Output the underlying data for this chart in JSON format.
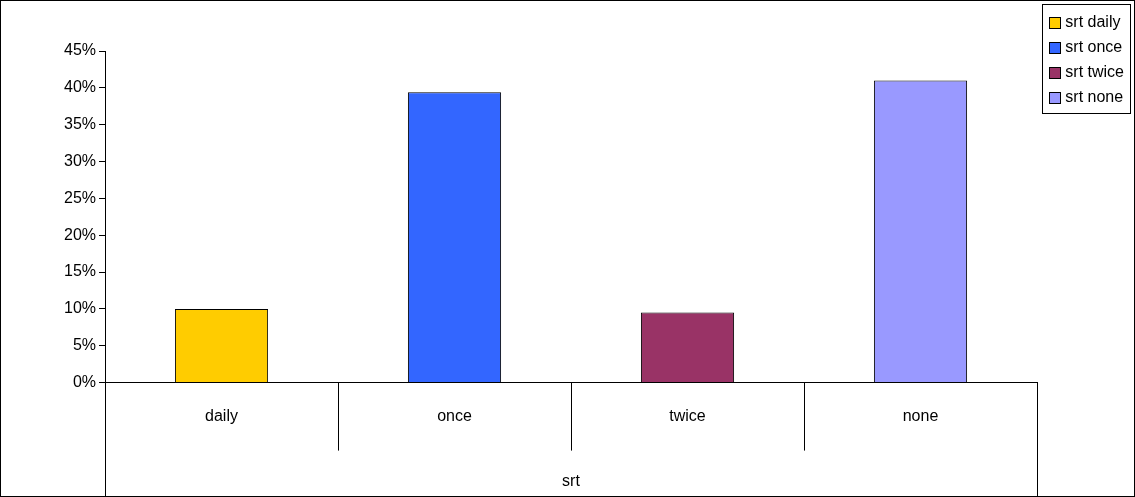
{
  "chart_data": {
    "type": "bar",
    "xlabel": "srt",
    "categories": [
      "daily",
      "once",
      "twice",
      "none"
    ],
    "series": [
      {
        "name": "srt daily",
        "color": "#ffcc00",
        "values": [
          10.0,
          null,
          null,
          null
        ]
      },
      {
        "name": "srt once",
        "color": "#3366ff",
        "values": [
          null,
          39.4,
          null,
          null
        ]
      },
      {
        "name": "srt twice",
        "color": "#993366",
        "values": [
          null,
          null,
          9.5,
          null
        ]
      },
      {
        "name": "srt none",
        "color": "#9999ff",
        "values": [
          null,
          null,
          null,
          41.0
        ]
      }
    ],
    "ylim": [
      0,
      45
    ],
    "yticks": [
      {
        "value": 0,
        "label": "0%"
      },
      {
        "value": 5,
        "label": "5%"
      },
      {
        "value": 10,
        "label": "10%"
      },
      {
        "value": 15,
        "label": "15%"
      },
      {
        "value": 20,
        "label": "20%"
      },
      {
        "value": 25,
        "label": "25%"
      },
      {
        "value": 30,
        "label": "30%"
      },
      {
        "value": 35,
        "label": "35%"
      },
      {
        "value": 40,
        "label": "40%"
      },
      {
        "value": 45,
        "label": "45%"
      }
    ],
    "legend": "top right",
    "grid": false
  }
}
